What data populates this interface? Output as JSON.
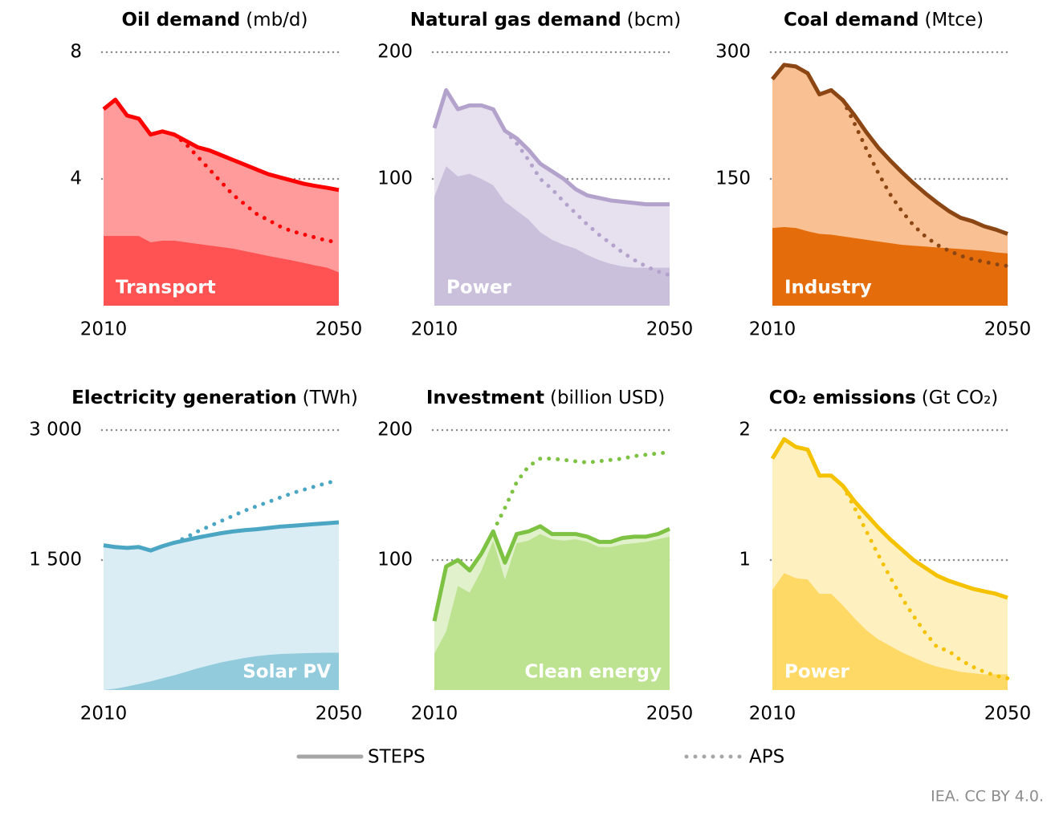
{
  "chart_data": [
    {
      "type": "area",
      "title": "Oil demand",
      "unit": "(mb/d)",
      "x": [
        2010,
        2012,
        2014,
        2016,
        2018,
        2020,
        2022,
        2024,
        2026,
        2028,
        2030,
        2032,
        2034,
        2036,
        2038,
        2040,
        2042,
        2044,
        2046,
        2048,
        2050
      ],
      "xlim": [
        2010,
        2050
      ],
      "xticks": [
        2010,
        2050
      ],
      "ylim": [
        0,
        8
      ],
      "yticks": [
        4,
        8
      ],
      "grid": true,
      "series": [
        {
          "name": "Transport",
          "color": "#ff5252",
          "values": [
            2.2,
            2.2,
            2.2,
            2.2,
            2.0,
            2.05,
            2.05,
            2.0,
            1.95,
            1.9,
            1.85,
            1.8,
            1.72,
            1.65,
            1.57,
            1.5,
            1.43,
            1.35,
            1.27,
            1.2,
            1.05
          ]
        },
        {
          "color": "#ff9b9b",
          "line_color": "#ff0000",
          "style": "solid",
          "values": [
            6.2,
            6.5,
            6.0,
            5.9,
            5.4,
            5.5,
            5.4,
            5.2,
            5.0,
            4.9,
            4.75,
            4.6,
            4.45,
            4.3,
            4.15,
            4.05,
            3.95,
            3.85,
            3.78,
            3.72,
            3.65
          ]
        },
        {
          "color": "#ff0000",
          "style": "dotted",
          "values": [
            null,
            null,
            null,
            null,
            null,
            null,
            5.4,
            5.1,
            4.7,
            4.3,
            3.9,
            3.5,
            3.2,
            2.9,
            2.7,
            2.5,
            2.35,
            2.25,
            2.15,
            2.05,
            2.0
          ]
        }
      ]
    },
    {
      "type": "area",
      "title": "Natural gas demand",
      "unit": "(bcm)",
      "x": [
        2010,
        2012,
        2014,
        2016,
        2018,
        2020,
        2022,
        2024,
        2026,
        2028,
        2030,
        2032,
        2034,
        2036,
        2038,
        2040,
        2042,
        2044,
        2046,
        2048,
        2050
      ],
      "xlim": [
        2010,
        2050
      ],
      "xticks": [
        2010,
        2050
      ],
      "ylim": [
        0,
        200
      ],
      "yticks": [
        100,
        200
      ],
      "grid": true,
      "series": [
        {
          "name": "Power",
          "color": "#cbc0dc",
          "values": [
            86,
            110,
            102,
            104,
            100,
            95,
            82,
            75,
            68,
            58,
            52,
            48,
            45,
            40,
            36,
            33,
            31,
            30,
            30,
            30,
            30
          ]
        },
        {
          "color": "#e6e0ef",
          "line_color": "#b3a2cc",
          "style": "solid",
          "values": [
            140,
            170,
            155,
            158,
            158,
            155,
            138,
            132,
            123,
            112,
            106,
            100,
            92,
            87,
            85,
            83,
            82,
            81,
            80,
            80,
            80
          ]
        },
        {
          "color": "#b3a2cc",
          "style": "dotted",
          "values": [
            null,
            null,
            null,
            null,
            null,
            null,
            138,
            128,
            115,
            100,
            92,
            82,
            73,
            64,
            56,
            49,
            42,
            36,
            31,
            27,
            24
          ]
        }
      ]
    },
    {
      "type": "area",
      "title": "Coal demand",
      "unit": "(Mtce)",
      "x": [
        2010,
        2012,
        2014,
        2016,
        2018,
        2020,
        2022,
        2024,
        2026,
        2028,
        2030,
        2032,
        2034,
        2036,
        2038,
        2040,
        2042,
        2044,
        2046,
        2048,
        2050
      ],
      "xlim": [
        2010,
        2050
      ],
      "xticks": [
        2010,
        2050
      ],
      "ylim": [
        0,
        300
      ],
      "yticks": [
        150,
        300
      ],
      "grid": true,
      "series": [
        {
          "name": "Industry",
          "color": "#e46c0a",
          "values": [
            92,
            93,
            92,
            88,
            85,
            84,
            82,
            80,
            78,
            76,
            74,
            72,
            71,
            70,
            69,
            68,
            67,
            66,
            65,
            63,
            62
          ]
        },
        {
          "color": "#f9c193",
          "line_color": "#8c4614",
          "style": "solid",
          "values": [
            268,
            285,
            283,
            275,
            250,
            255,
            243,
            225,
            205,
            187,
            172,
            158,
            145,
            133,
            122,
            112,
            104,
            100,
            94,
            90,
            85
          ]
        },
        {
          "color": "#8c4614",
          "style": "dotted",
          "values": [
            null,
            null,
            null,
            null,
            null,
            null,
            243,
            215,
            185,
            157,
            132,
            112,
            95,
            82,
            72,
            65,
            59,
            55,
            52,
            49,
            47
          ]
        }
      ]
    },
    {
      "type": "area",
      "title": "Electricity generation",
      "unit": "(TWh)",
      "x": [
        2010,
        2012,
        2014,
        2016,
        2018,
        2020,
        2022,
        2024,
        2026,
        2028,
        2030,
        2032,
        2034,
        2036,
        2038,
        2040,
        2042,
        2044,
        2046,
        2048,
        2050
      ],
      "xlim": [
        2010,
        2050
      ],
      "xticks": [
        2010,
        2050
      ],
      "ylim": [
        0,
        3000
      ],
      "yticks": [
        {
          "value": 1500,
          "label": "1 500"
        },
        {
          "value": 3000,
          "label": "3 000"
        }
      ],
      "grid": true,
      "series": [
        {
          "name": "Solar PV",
          "color": "#92cbdc",
          "values": [
            0,
            15,
            40,
            70,
            100,
            135,
            170,
            210,
            250,
            285,
            320,
            345,
            370,
            390,
            405,
            415,
            420,
            425,
            428,
            430,
            430
          ]
        },
        {
          "color": "#daedf4",
          "line_color": "#4ba6c4",
          "style": "solid",
          "values": [
            1670,
            1650,
            1640,
            1650,
            1610,
            1660,
            1700,
            1730,
            1760,
            1785,
            1810,
            1830,
            1845,
            1855,
            1870,
            1885,
            1895,
            1905,
            1915,
            1925,
            1935
          ]
        },
        {
          "color": "#4ba6c4",
          "style": "dotted",
          "values": [
            null,
            null,
            null,
            null,
            null,
            null,
            1700,
            1760,
            1830,
            1890,
            1950,
            2010,
            2070,
            2120,
            2170,
            2220,
            2270,
            2310,
            2350,
            2390,
            2420
          ]
        }
      ]
    },
    {
      "type": "area",
      "title": "Investment",
      "unit": "(billion USD)",
      "x": [
        2010,
        2012,
        2014,
        2016,
        2018,
        2020,
        2022,
        2024,
        2026,
        2028,
        2030,
        2032,
        2034,
        2036,
        2038,
        2040,
        2042,
        2044,
        2046,
        2048,
        2050
      ],
      "xlim": [
        2010,
        2050
      ],
      "xticks": [
        2010,
        2050
      ],
      "ylim": [
        0,
        200
      ],
      "yticks": [
        100,
        200
      ],
      "grid": true,
      "series": [
        {
          "name": "Clean energy",
          "color": "#bde390",
          "values": [
            28,
            45,
            80,
            75,
            92,
            115,
            85,
            113,
            115,
            120,
            116,
            115,
            116,
            114,
            110,
            110,
            112,
            113,
            114,
            116,
            118
          ]
        },
        {
          "color": "#e0f1cc",
          "line_color": "#7dc242",
          "style": "solid",
          "values": [
            53,
            95,
            100,
            92,
            105,
            122,
            98,
            120,
            122,
            126,
            120,
            120,
            120,
            118,
            114,
            114,
            117,
            118,
            118,
            120,
            124
          ]
        },
        {
          "color": "#7dc242",
          "style": "dotted",
          "values": [
            null,
            null,
            null,
            null,
            null,
            122,
            140,
            160,
            172,
            178,
            178,
            177,
            176,
            175,
            176,
            177,
            178,
            180,
            181,
            182,
            183
          ]
        }
      ]
    },
    {
      "type": "area",
      "title": "CO₂ emissions",
      "unit": "(Gt CO₂)",
      "x": [
        2010,
        2012,
        2014,
        2016,
        2018,
        2020,
        2022,
        2024,
        2026,
        2028,
        2030,
        2032,
        2034,
        2036,
        2038,
        2040,
        2042,
        2044,
        2046,
        2048,
        2050
      ],
      "xlim": [
        2010,
        2050
      ],
      "xticks": [
        2010,
        2050
      ],
      "ylim": [
        0,
        2
      ],
      "yticks": [
        1,
        2
      ],
      "grid": true,
      "series": [
        {
          "name": "Power",
          "color": "#ffd966",
          "values": [
            0.77,
            0.9,
            0.86,
            0.85,
            0.74,
            0.74,
            0.65,
            0.55,
            0.46,
            0.39,
            0.34,
            0.29,
            0.25,
            0.21,
            0.18,
            0.16,
            0.14,
            0.13,
            0.12,
            0.12,
            0.12
          ]
        },
        {
          "color": "#fff0bf",
          "line_color": "#f5c200",
          "style": "solid",
          "values": [
            1.78,
            1.93,
            1.87,
            1.85,
            1.65,
            1.65,
            1.57,
            1.45,
            1.35,
            1.25,
            1.16,
            1.08,
            1.0,
            0.94,
            0.88,
            0.84,
            0.81,
            0.78,
            0.76,
            0.74,
            0.71
          ]
        },
        {
          "color": "#f5c200",
          "style": "dotted",
          "values": [
            null,
            null,
            null,
            null,
            null,
            null,
            1.57,
            1.4,
            1.22,
            1.04,
            0.87,
            0.71,
            0.57,
            0.44,
            0.33,
            0.3,
            0.23,
            0.18,
            0.14,
            0.11,
            0.09
          ]
        }
      ]
    }
  ],
  "legend": [
    {
      "label": "STEPS",
      "style": "solid",
      "color": "#a6a6a6"
    },
    {
      "label": "APS",
      "style": "dotted",
      "color": "#a6a6a6"
    }
  ],
  "source": "IEA. CC BY 4.0."
}
